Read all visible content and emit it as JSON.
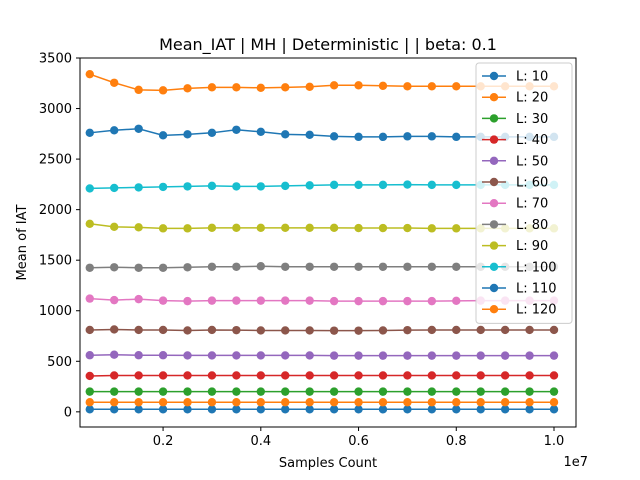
{
  "chart_data": {
    "type": "line",
    "title": "Mean_IAT  | MH | Deterministic |  | beta: 0.1",
    "xlabel": "Samples Count",
    "ylabel": "Mean of IAT",
    "x_offset_text": "1e7",
    "x_scale_factor": 10000000,
    "xlim": [
      300000,
      10450000
    ],
    "ylim": [
      -150,
      3500
    ],
    "xticks": [
      0.2,
      0.4,
      0.6,
      0.8,
      1.0
    ],
    "xtick_labels": [
      "0.2",
      "0.4",
      "0.6",
      "0.8",
      "1.0"
    ],
    "yticks": [
      0,
      500,
      1000,
      1500,
      2000,
      2500,
      3000,
      3500
    ],
    "ytick_labels": [
      "0",
      "500",
      "1000",
      "1500",
      "2000",
      "2500",
      "3000",
      "3500"
    ],
    "grid": false,
    "legend_position": "top-right",
    "x": [
      500000,
      1000000,
      1500000,
      2000000,
      2500000,
      3000000,
      3500000,
      4000000,
      4500000,
      5000000,
      5500000,
      6000000,
      6500000,
      7000000,
      7500000,
      8000000,
      8500000,
      9000000,
      9500000,
      10000000
    ],
    "series": [
      {
        "name": "L: 10",
        "color": "#1f77b4",
        "values": [
          25,
          25,
          25,
          25,
          25,
          25,
          25,
          25,
          25,
          25,
          25,
          25,
          25,
          25,
          25,
          25,
          25,
          25,
          25,
          25
        ]
      },
      {
        "name": "L: 20",
        "color": "#ff7f0e",
        "values": [
          95,
          95,
          95,
          95,
          95,
          95,
          95,
          95,
          95,
          95,
          95,
          95,
          95,
          95,
          95,
          95,
          95,
          95,
          95,
          95
        ]
      },
      {
        "name": "L: 30",
        "color": "#2ca02c",
        "values": [
          200,
          200,
          200,
          200,
          200,
          200,
          200,
          200,
          200,
          200,
          200,
          200,
          200,
          200,
          200,
          200,
          200,
          200,
          200,
          200
        ]
      },
      {
        "name": "L: 40",
        "color": "#d62728",
        "values": [
          355,
          360,
          360,
          360,
          360,
          360,
          360,
          360,
          360,
          360,
          360,
          360,
          360,
          360,
          360,
          360,
          360,
          360,
          360,
          360
        ]
      },
      {
        "name": "L: 50",
        "color": "#9467bd",
        "values": [
          560,
          565,
          560,
          560,
          558,
          558,
          558,
          558,
          558,
          558,
          556,
          556,
          556,
          556,
          556,
          556,
          556,
          556,
          556,
          556
        ]
      },
      {
        "name": "L: 60",
        "color": "#8c564b",
        "values": [
          810,
          815,
          810,
          810,
          805,
          810,
          808,
          805,
          805,
          805,
          803,
          803,
          805,
          808,
          810,
          810,
          810,
          810,
          810,
          810
        ]
      },
      {
        "name": "L: 70",
        "color": "#e377c2",
        "values": [
          1120,
          1105,
          1115,
          1100,
          1095,
          1100,
          1100,
          1100,
          1100,
          1100,
          1095,
          1095,
          1095,
          1095,
          1095,
          1098,
          1100,
          1100,
          1100,
          1100
        ]
      },
      {
        "name": "L: 80",
        "color": "#7f7f7f",
        "values": [
          1425,
          1430,
          1425,
          1425,
          1430,
          1435,
          1435,
          1440,
          1435,
          1435,
          1435,
          1435,
          1435,
          1435,
          1435,
          1435,
          1435,
          1435,
          1435,
          1435
        ]
      },
      {
        "name": "L: 90",
        "color": "#bcbd22",
        "values": [
          1860,
          1830,
          1825,
          1815,
          1815,
          1820,
          1820,
          1820,
          1820,
          1820,
          1820,
          1818,
          1818,
          1818,
          1815,
          1815,
          1815,
          1815,
          1815,
          1815
        ]
      },
      {
        "name": "L: 100",
        "color": "#17becf",
        "values": [
          2210,
          2215,
          2220,
          2225,
          2230,
          2235,
          2230,
          2230,
          2235,
          2240,
          2245,
          2245,
          2245,
          2248,
          2245,
          2245,
          2245,
          2245,
          2245,
          2245
        ]
      },
      {
        "name": "L: 110",
        "color": "#1f77b4",
        "values": [
          2760,
          2785,
          2800,
          2735,
          2745,
          2760,
          2790,
          2770,
          2745,
          2740,
          2725,
          2720,
          2720,
          2725,
          2725,
          2720,
          2720,
          2720,
          2720,
          2720
        ]
      },
      {
        "name": "L: 120",
        "color": "#ff7f0e",
        "values": [
          3340,
          3255,
          3185,
          3180,
          3200,
          3210,
          3210,
          3205,
          3210,
          3215,
          3230,
          3230,
          3225,
          3220,
          3220,
          3220,
          3220,
          3220,
          3220,
          3220
        ]
      }
    ]
  }
}
